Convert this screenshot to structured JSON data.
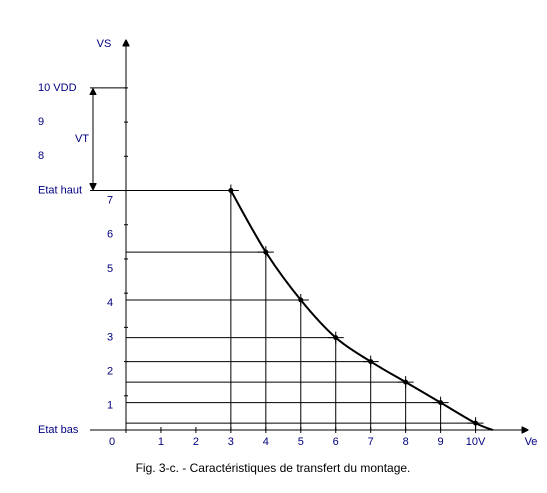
{
  "chart_data": {
    "type": "line",
    "title": "Fig. 3-c. - Caractéristiques de transfert du montage.",
    "x_label": "Ve",
    "y_label": "VS",
    "x": [
      3,
      4,
      5,
      6,
      7,
      8,
      9,
      10,
      10.5
    ],
    "series": [
      {
        "color": "#000000",
        "values": [
          7,
          5.2,
          3.8,
          2.7,
          2.0,
          1.4,
          0.8,
          0.2,
          0
        ]
      }
    ],
    "xlim": [
      0,
      11.5
    ],
    "ylim": [
      0,
      11.4
    ],
    "xticks": [
      0,
      1,
      2,
      3,
      4,
      5,
      6,
      7,
      8,
      9,
      {
        "value": 10,
        "label": "10V"
      }
    ],
    "yticks": [
      1,
      2,
      3,
      4,
      5,
      6,
      7,
      8,
      9,
      {
        "value": 10,
        "label": "10  VDD"
      }
    ],
    "annotations": [
      {
        "text": "Etat haut",
        "y": 7
      },
      {
        "text": "Etat bas",
        "y": 0
      },
      {
        "text": "VT",
        "from": 7,
        "to": 10
      }
    ]
  }
}
